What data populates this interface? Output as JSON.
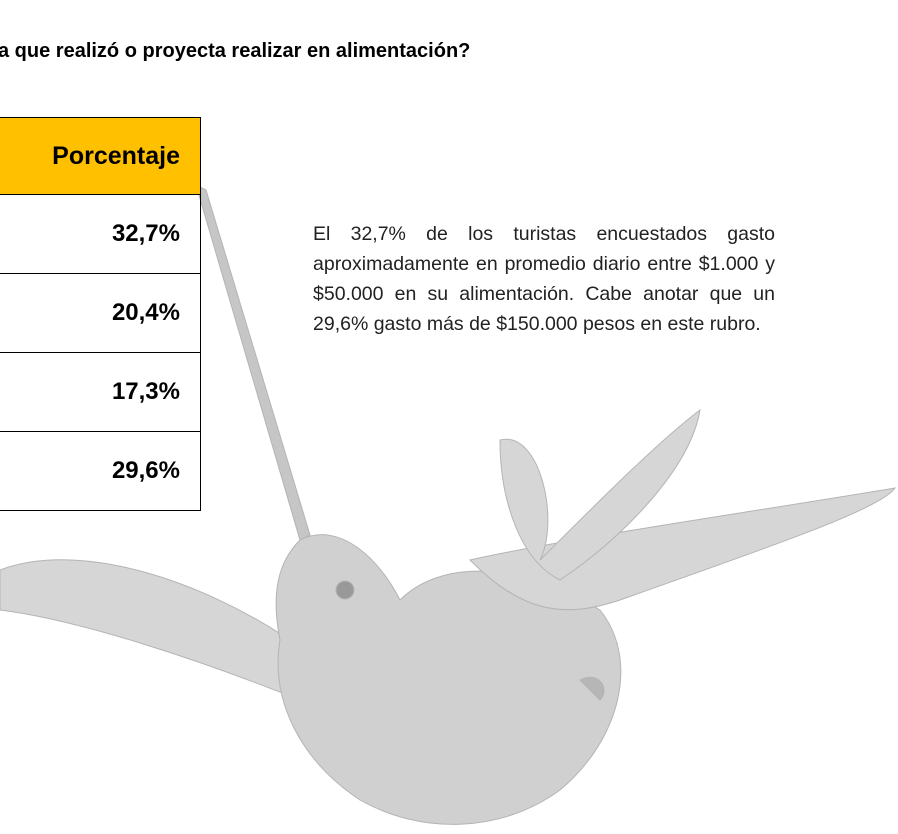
{
  "heading": "a que realizó o proyecta realizar en alimentación?",
  "table": {
    "header": "Porcentaje",
    "rows": [
      "32,7%",
      "20,4%",
      "17,3%",
      "29,6%"
    ]
  },
  "paragraph": "El 32,7% de los turistas encuestados gasto aproximadamente en promedio diario entre $1.000 y $50.000 en su alimentación. Cabe anotar que un 29,6% gasto más de $150.000 pesos en este rubro."
}
